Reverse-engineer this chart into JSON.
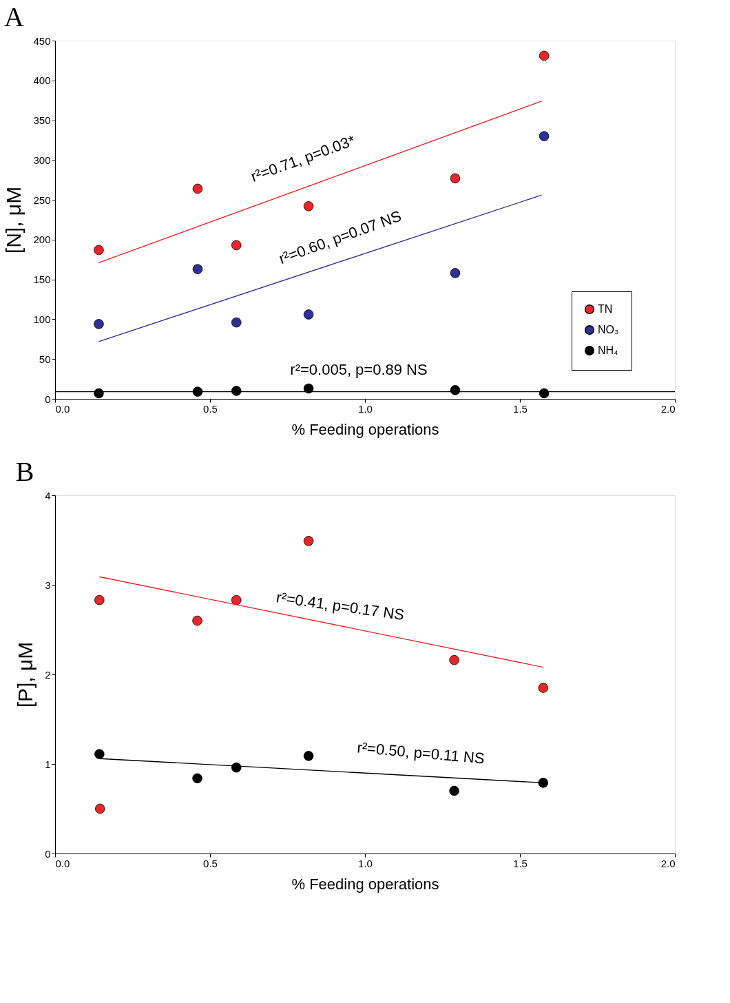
{
  "chart_data": [
    {
      "type": "scatter",
      "title": "A",
      "xlabel": "% Feeding operations",
      "ylabel": "[N], μM",
      "xlim": [
        0,
        2
      ],
      "xticks": [
        {
          "value": 0,
          "label": "0.0"
        },
        {
          "value": 0.5,
          "label": "0.5"
        },
        {
          "value": 1,
          "label": "1.0"
        },
        {
          "value": 1.5,
          "label": "1.5"
        },
        {
          "value": 2,
          "label": "2.0"
        }
      ],
      "ylim": [
        0,
        450
      ],
      "yticks": [
        0,
        50,
        100,
        150,
        200,
        250,
        300,
        350,
        400,
        450
      ],
      "grid": false,
      "legend": "right",
      "marker": "circle",
      "x": [
        0.141,
        0.46,
        0.585,
        0.818,
        1.291,
        1.578
      ],
      "series": [
        {
          "name": "TN",
          "color": "#e8262a",
          "values": [
            187,
            264,
            193,
            242,
            277,
            431
          ]
        },
        {
          "name": "NO₃",
          "color": "#2e3192",
          "values": [
            94,
            163,
            96,
            106,
            158,
            330
          ]
        },
        {
          "name": "NH₄",
          "color": "#000000",
          "values": [
            7,
            9,
            10,
            13,
            11,
            7
          ]
        },
        {
          "type": "line",
          "marker": "none",
          "color": "#e8262a",
          "x": [
            0.141,
            1.57
          ],
          "values": [
            171,
            374
          ]
        },
        {
          "type": "line",
          "marker": "none",
          "color": "#2e3192",
          "x": [
            0.141,
            1.57
          ],
          "values": [
            72,
            256
          ]
        },
        {
          "type": "line",
          "marker": "none",
          "color": "#000000",
          "x": [
            0,
            2
          ],
          "values": [
            9,
            9
          ]
        }
      ],
      "annotations": [
        "r²=0.71, p=0.03*",
        "r²=0.60, p=0.07 NS",
        "r²=0.005, p=0.89 NS"
      ]
    },
    {
      "type": "scatter",
      "title": "B",
      "xlabel": "% Feeding operations",
      "ylabel": "[P], μM",
      "xlim": [
        0,
        2
      ],
      "xticks": [
        {
          "value": 0,
          "label": "0.0"
        },
        {
          "value": 0.5,
          "label": "0.5"
        },
        {
          "value": 1,
          "label": "1.0"
        },
        {
          "value": 1.5,
          "label": "1.5"
        },
        {
          "value": 2,
          "label": "2.0"
        }
      ],
      "ylim": [
        0,
        4
      ],
      "yticks": [
        {
          "value": 0,
          "label": "0"
        },
        {
          "value": 1,
          "label": "1"
        },
        {
          "value": 2,
          "label": "2"
        },
        {
          "value": 3,
          "label": "3"
        },
        {
          "value": 4,
          "label": "4"
        }
      ],
      "grid": false,
      "marker": "circle",
      "x": [
        0.143,
        0.459,
        0.585,
        0.818,
        1.288,
        1.575
      ],
      "series": [
        {
          "color": "#e8262a",
          "values": [
            2.83,
            2.6,
            2.83,
            3.49,
            2.16,
            1.85
          ]
        },
        {
          "color": "#000000",
          "values": [
            1.11,
            0.84,
            0.96,
            1.09,
            0.7,
            0.79
          ]
        },
        {
          "color": "#e8262a",
          "x": [
            0.145
          ],
          "values": [
            0.5
          ]
        },
        {
          "type": "line",
          "marker": "none",
          "color": "#e8262a",
          "x": [
            0.143,
            1.575
          ],
          "values": [
            3.09,
            2.08
          ]
        },
        {
          "type": "line",
          "marker": "none",
          "color": "#000000",
          "x": [
            0.143,
            1.575
          ],
          "values": [
            1.06,
            0.79
          ]
        }
      ],
      "annotations": [
        "r²=0.41, p=0.17 NS",
        "r²=0.50, p=0.11 NS"
      ]
    }
  ]
}
